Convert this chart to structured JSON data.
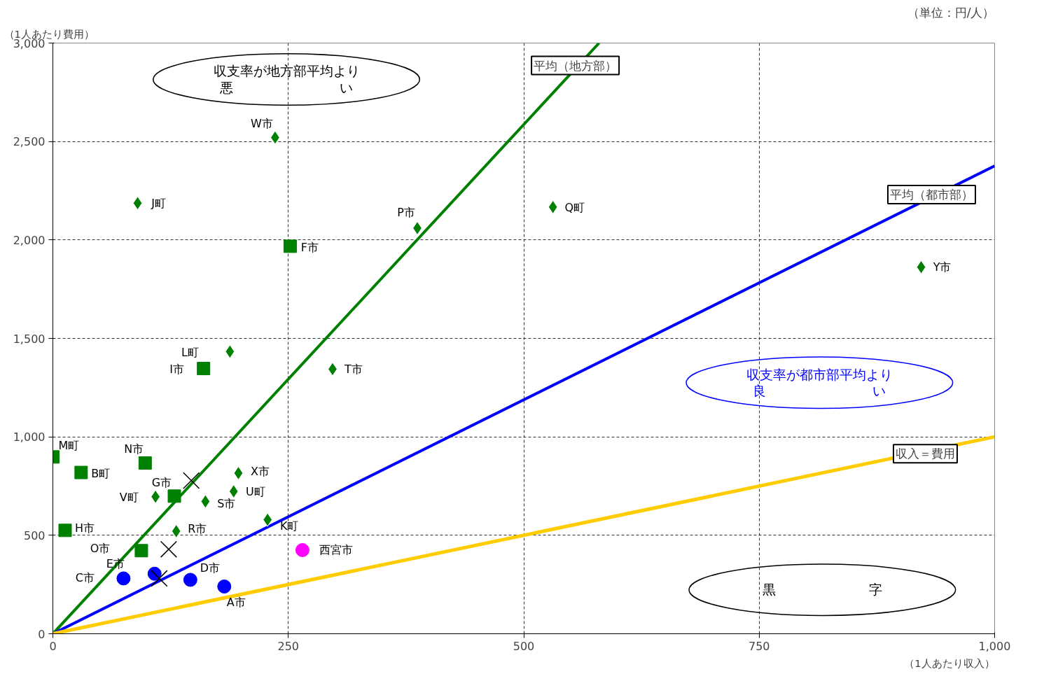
{
  "chart_data": {
    "type": "scatter",
    "xlabel": "（1人あたり収入）",
    "ylabel": "（1人あたり費用）",
    "xlim": [
      0,
      1000
    ],
    "ylim": [
      0,
      3000
    ],
    "xticks": [
      0,
      250,
      500,
      750,
      {
        "value": 1000,
        "label": "1,000"
      }
    ],
    "yticks": [
      0,
      500,
      {
        "value": 1000,
        "label": "1,000"
      },
      {
        "value": 1500,
        "label": "1,500"
      },
      {
        "value": 2000,
        "label": "2,000"
      },
      {
        "value": 2500,
        "label": "2,500"
      },
      {
        "value": 3000,
        "label": "3,000"
      }
    ],
    "grid": true,
    "series": [
      {
        "type": "line",
        "name": "平均（地方部）",
        "color": "#008000",
        "x": [
          0,
          580
        ],
        "values": [
          0,
          3000
        ]
      },
      {
        "type": "line",
        "name": "平均（都市部）",
        "color": "#0000ff",
        "x": [
          0,
          1000
        ],
        "values": [
          0,
          2376
        ]
      },
      {
        "type": "line",
        "name": "収入＝費用",
        "color": "#ffcc00",
        "x": [
          0,
          1000
        ],
        "values": [
          0,
          1000
        ]
      },
      {
        "marker": "diamond",
        "color": "#008000",
        "x": [
          236,
          90,
          387,
          531,
          922,
          188,
          297,
          197,
          192,
          109,
          162,
          228,
          131
        ],
        "values": [
          2520,
          2187,
          2060,
          2167,
          1862,
          1433,
          1344,
          816,
          723,
          696,
          672,
          579,
          521
        ]
      },
      {
        "marker": "square",
        "color": "#008000",
        "x": [
          252,
          160,
          0,
          98,
          30,
          129,
          13,
          94
        ],
        "values": [
          1968,
          1347,
          898,
          867,
          819,
          699,
          525,
          422
        ]
      },
      {
        "marker": "circle",
        "color": "#0000ff",
        "x": [
          75,
          108,
          146,
          182
        ],
        "values": [
          281,
          305,
          274,
          240
        ]
      },
      {
        "marker": "circle",
        "color": "#ff00ff",
        "x": [
          265
        ],
        "values": [
          425
        ]
      },
      {
        "marker": "cross",
        "color": "#000000",
        "x": [
          147,
          123,
          113
        ],
        "values": [
          778,
          429,
          281
        ]
      }
    ],
    "annotations": [
      {
        "text": "W市",
        "x": 236,
        "y": 2520
      },
      {
        "text": "J町",
        "x": 90,
        "y": 2187
      },
      {
        "text": "P市",
        "x": 387,
        "y": 2060
      },
      {
        "text": "Q町",
        "x": 531,
        "y": 2167
      },
      {
        "text": "Y市",
        "x": 922,
        "y": 1862
      },
      {
        "text": "L町",
        "x": 188,
        "y": 1433
      },
      {
        "text": "T市",
        "x": 297,
        "y": 1344
      },
      {
        "text": "X市",
        "x": 197,
        "y": 816
      },
      {
        "text": "U町",
        "x": 192,
        "y": 723
      },
      {
        "text": "V町",
        "x": 109,
        "y": 696
      },
      {
        "text": "S市",
        "x": 162,
        "y": 672
      },
      {
        "text": "K町",
        "x": 228,
        "y": 579
      },
      {
        "text": "R市",
        "x": 131,
        "y": 521
      },
      {
        "text": "F市",
        "x": 252,
        "y": 1968
      },
      {
        "text": "I市",
        "x": 160,
        "y": 1347
      },
      {
        "text": "M町",
        "x": 0,
        "y": 898
      },
      {
        "text": "N市",
        "x": 98,
        "y": 867
      },
      {
        "text": "B町",
        "x": 30,
        "y": 819
      },
      {
        "text": "G市",
        "x": 129,
        "y": 699
      },
      {
        "text": "H市",
        "x": 13,
        "y": 525
      },
      {
        "text": "O市",
        "x": 94,
        "y": 422
      },
      {
        "text": "C市",
        "x": 75,
        "y": 281
      },
      {
        "text": "E市",
        "x": 108,
        "y": 305
      },
      {
        "text": "D市",
        "x": 146,
        "y": 274
      },
      {
        "text": "A市",
        "x": 182,
        "y": 240
      },
      {
        "text": "西宮市",
        "x": 265,
        "y": 425
      },
      "収支率が地方部平均より悪　　　　　　　　い",
      "収支率が都市部平均より良　　　　　　　　い",
      "黒　　　　　　　字",
      "（単位：円/人）"
    ]
  }
}
